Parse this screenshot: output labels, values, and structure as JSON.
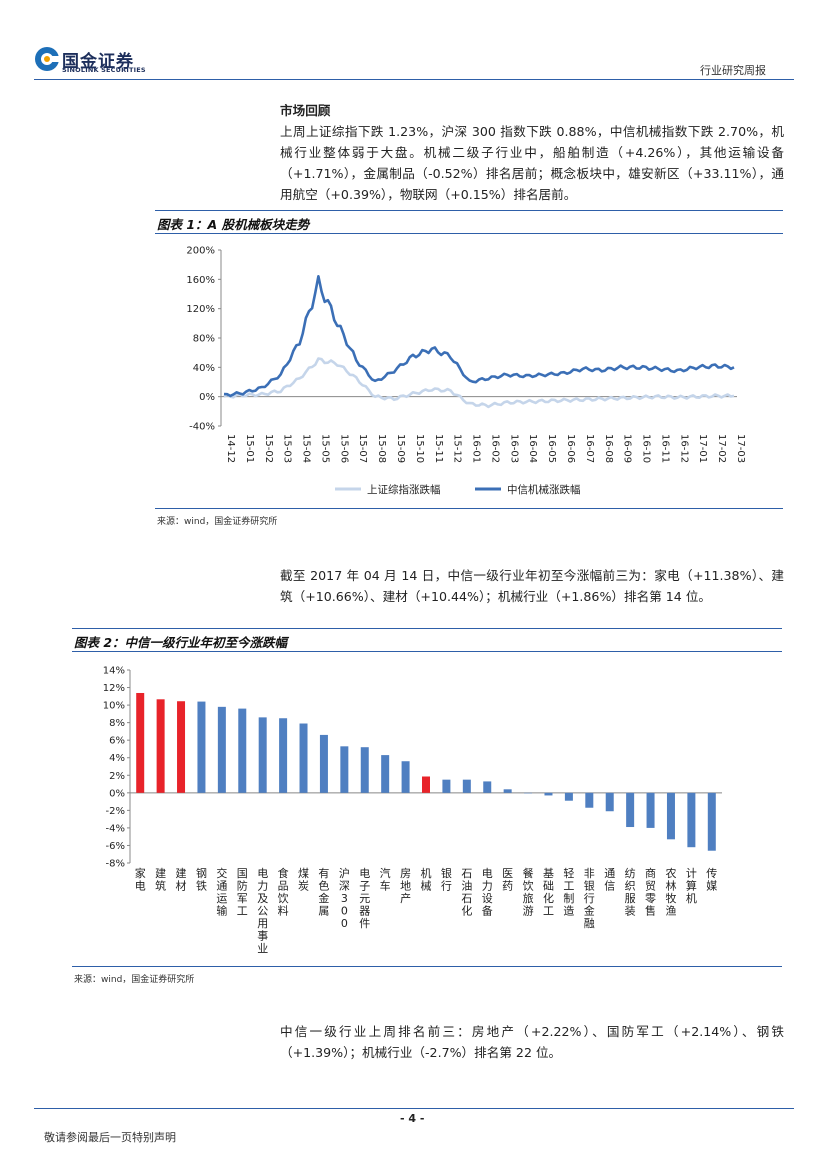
{
  "header": {
    "logo_cn": "国金证券",
    "logo_en": "SINOLINK SECURITIES",
    "report_type": "行业研究周报"
  },
  "section": {
    "heading": "市场回顾",
    "para1": "上周上证综指下跌 1.23%，沪深 300 指数下跌 0.88%，中信机械指数下跌 2.70%，机械行业整体弱于大盘。机械二级子行业中，船舶制造（+4.26%），其他运输设备（+1.71%），金属制品（-0.52%）排名居前；概念板块中，雄安新区（+33.11%），通用航空（+0.39%），物联网（+0.15%）排名居前。",
    "para2": "截至 2017 年 04 月 14 日，中信一级行业年初至今涨幅前三为：家电（+11.38%）、建筑（+10.66%）、建材（+10.44%）；机械行业（+1.86%）排名第 14 位。",
    "para3": "中信一级行业上周排名前三：房地产（+2.22%）、国防军工（+2.14%）、钢铁（+1.39%）；机械行业（-2.7%）排名第 22 位。"
  },
  "figure1": {
    "title": "图表 1：A 股机械板块走势",
    "source": "来源：wind，国金证券研究所"
  },
  "figure2": {
    "title": "图表 2：中信一级行业年初至今涨跌幅",
    "source": "来源：wind，国金证券研究所"
  },
  "chart_data": [
    {
      "type": "line",
      "title": "A 股机械板块走势",
      "x": [
        "14-12",
        "15-01",
        "15-02",
        "15-03",
        "15-04",
        "15-05",
        "15-06",
        "15-07",
        "15-08",
        "15-09",
        "15-10",
        "15-11",
        "15-12",
        "16-01",
        "16-02",
        "16-03",
        "16-04",
        "16-05",
        "16-06",
        "16-07",
        "16-08",
        "16-09",
        "16-10",
        "16-11",
        "16-12",
        "17-01",
        "17-02",
        "17-03"
      ],
      "series": [
        {
          "name": "上证综指涨跌幅",
          "color": "#c5d5ea",
          "values": [
            0,
            2,
            3,
            8,
            25,
            50,
            45,
            25,
            0,
            -3,
            4,
            10,
            8,
            -10,
            -12,
            -8,
            -7,
            -6,
            -5,
            -4,
            -3,
            -2,
            -1,
            0,
            -1,
            0,
            1,
            1
          ]
        },
        {
          "name": "中信机械涨跌幅",
          "color": "#3b6fb6",
          "values": [
            2,
            5,
            12,
            30,
            75,
            155,
            100,
            50,
            20,
            35,
            55,
            65,
            55,
            20,
            25,
            30,
            28,
            30,
            32,
            38,
            36,
            40,
            40,
            38,
            35,
            40,
            42,
            40
          ]
        }
      ],
      "ylim": [
        -40,
        200
      ],
      "yticks": [
        "-40%",
        "0%",
        "40%",
        "80%",
        "120%",
        "160%",
        "200%"
      ],
      "legend": "bottom"
    },
    {
      "type": "bar",
      "title": "中信一级行业年初至今涨跌幅",
      "categories": [
        "家电",
        "建筑",
        "建材",
        "钢铁",
        "交通运输",
        "国防军工",
        "电力及公用事业",
        "食品饮料",
        "煤炭",
        "有色金属",
        "沪深300",
        "电子元器件",
        "汽车",
        "房地产",
        "机械",
        "银行",
        "石油石化",
        "电力设备",
        "医药",
        "餐饮旅游",
        "基础化工",
        "轻工制造",
        "非银行金融",
        "通信",
        "纺织服装",
        "商贸零售",
        "农林牧渔",
        "计算机",
        "传媒"
      ],
      "values": [
        11.38,
        10.66,
        10.44,
        10.4,
        9.8,
        9.6,
        8.6,
        8.5,
        7.9,
        6.6,
        5.3,
        5.2,
        4.3,
        3.6,
        1.86,
        1.5,
        1.5,
        1.3,
        0.4,
        0.0,
        -0.3,
        -0.9,
        -1.7,
        -2.1,
        -3.9,
        -4.0,
        -5.3,
        -6.2,
        -6.6
      ],
      "highlight": [
        "家电",
        "建筑",
        "建材",
        "机械"
      ],
      "highlight_color": "#e8232a",
      "bar_color": "#4f7fc1",
      "ylim": [
        -8,
        14
      ],
      "yticks": [
        "-8%",
        "-6%",
        "-4%",
        "-2%",
        "0%",
        "2%",
        "4%",
        "6%",
        "8%",
        "10%",
        "12%",
        "14%"
      ]
    }
  ],
  "footer": {
    "page": "- 4 -",
    "disclaimer": "敬请参阅最后一页特别声明"
  }
}
